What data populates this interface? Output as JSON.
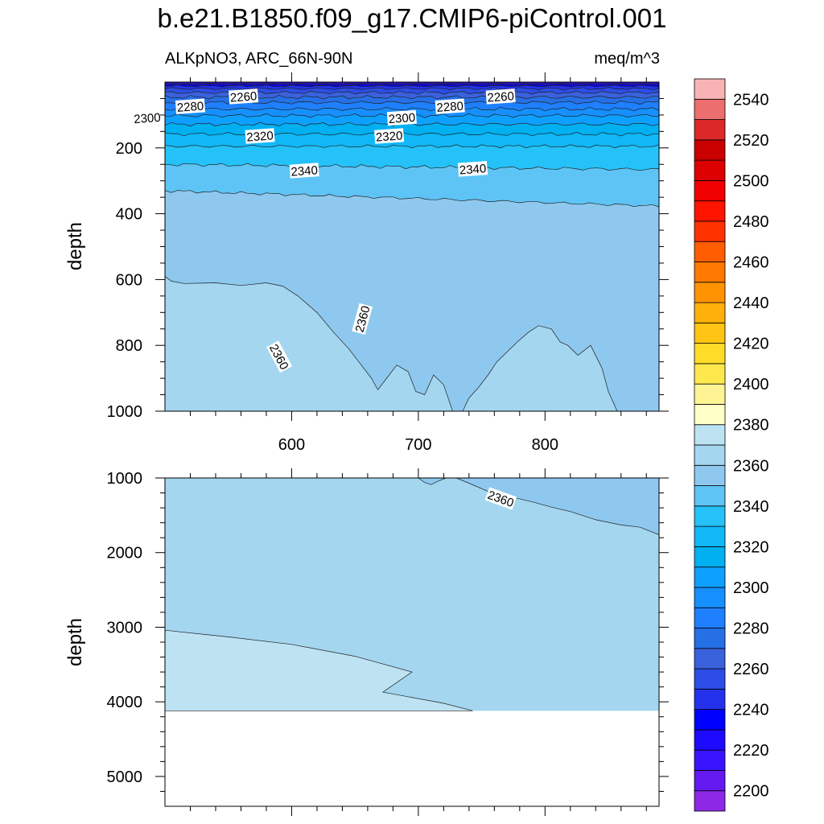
{
  "chart_data": {
    "type": "contour",
    "title": "b.e21.B1850.f09_g17.CMIP6-piControl.001",
    "left_subtitle": "ALKpNO3, ARC_66N-90N",
    "right_subtitle": "meq/m^3",
    "colorbar": {
      "levels": [
        2200,
        2210,
        2220,
        2230,
        2240,
        2250,
        2260,
        2270,
        2280,
        2290,
        2300,
        2310,
        2320,
        2330,
        2340,
        2350,
        2360,
        2370,
        2380,
        2390,
        2400,
        2410,
        2420,
        2430,
        2440,
        2450,
        2460,
        2470,
        2480,
        2490,
        2500,
        2510,
        2520,
        2530,
        2540,
        2550
      ],
      "labels": [
        "2200",
        "2220",
        "2240",
        "2260",
        "2280",
        "2300",
        "2320",
        "2340",
        "2360",
        "2380",
        "2400",
        "2420",
        "2440",
        "2460",
        "2480",
        "2500",
        "2520",
        "2540"
      ],
      "colors": [
        "#8c28e6",
        "#6319f0",
        "#3a14ff",
        "#1e0aff",
        "#0000ff",
        "#2432ee",
        "#2c4ee6",
        "#3a62dd",
        "#2670e6",
        "#1e80ff",
        "#1690ff",
        "#0ea0ff",
        "#00b0f0",
        "#10b8f8",
        "#24c2f8",
        "#5ec4f5",
        "#8ec8ee",
        "#a4d6f0",
        "#bde3f3",
        "#ffffc8",
        "#fff494",
        "#ffe84e",
        "#ffdc28",
        "#ffc414",
        "#ffb00a",
        "#ff9400",
        "#ff7800",
        "#ff5e00",
        "#ff3200",
        "#ff1400",
        "#f00000",
        "#dc0000",
        "#c80000",
        "#dc2828",
        "#ec6e6e",
        "#f8b4b4"
      ]
    },
    "top_panel": {
      "ylabel": "depth",
      "xlim": [
        500,
        890
      ],
      "ylim": [
        0,
        1000
      ],
      "xticks": [
        600,
        700,
        800
      ],
      "yticks": [
        200,
        400,
        600,
        800,
        1000
      ],
      "contour_labels": [
        {
          "text": "2260",
          "x": 562,
          "y": 45
        },
        {
          "text": "2280",
          "x": 520,
          "y": 75
        },
        {
          "text": "2300",
          "x": 486,
          "y": 110
        },
        {
          "text": "2320",
          "x": 575,
          "y": 165
        },
        {
          "text": "2340",
          "x": 610,
          "y": 270
        },
        {
          "text": "2360",
          "x": 590,
          "y": 835
        },
        {
          "text": "2360",
          "x": 656,
          "y": 720
        },
        {
          "text": "2300",
          "x": 687,
          "y": 110
        },
        {
          "text": "2320",
          "x": 677,
          "y": 165
        },
        {
          "text": "2280",
          "x": 725,
          "y": 75
        },
        {
          "text": "2260",
          "x": 765,
          "y": 45
        },
        {
          "text": "2340",
          "x": 743,
          "y": 265
        }
      ]
    },
    "bottom_panel": {
      "ylabel": "depth",
      "ylim": [
        1000,
        5400
      ],
      "yticks": [
        1000,
        2000,
        3000,
        4000,
        5000
      ],
      "ocean_floor_depth": 4120,
      "contour_labels": [
        {
          "text": "2360",
          "x": 765,
          "y": 1280
        }
      ]
    }
  }
}
